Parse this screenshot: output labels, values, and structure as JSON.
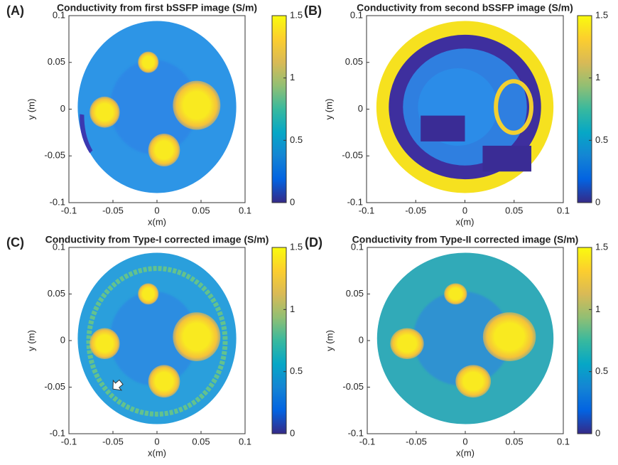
{
  "chart_data": [
    {
      "type": "image",
      "panel_label": "(A)",
      "title": "Conductivity from first bSSFP image (S/m)",
      "xlabel": "x(m)",
      "ylabel": "y (m)",
      "xlim": [
        -0.1,
        0.1
      ],
      "ylim": [
        -0.1,
        0.1
      ],
      "xticks": [
        -0.1,
        -0.05,
        0,
        0.05,
        0.1
      ],
      "yticks": [
        -0.1,
        -0.05,
        0,
        0.05,
        0.1
      ],
      "clim": [
        0,
        1.5
      ],
      "cticks": [
        0,
        0.5,
        1,
        1.5
      ],
      "colormap": "parula"
    },
    {
      "type": "image",
      "panel_label": "(B)",
      "title": "Conductivity from second bSSFP image (S/m)",
      "xlabel": "x(m)",
      "ylabel": "y (m)",
      "xlim": [
        -0.1,
        0.1
      ],
      "ylim": [
        -0.1,
        0.1
      ],
      "xticks": [
        -0.1,
        -0.05,
        0,
        0.05,
        0.1
      ],
      "yticks": [
        -0.1,
        -0.05,
        0,
        0.05,
        0.1
      ],
      "clim": [
        0,
        1.5
      ],
      "cticks": [
        0,
        0.5,
        1,
        1.5
      ],
      "colormap": "parula"
    },
    {
      "type": "image",
      "panel_label": "(C)",
      "title": "Conductivity from Type-I corrected image (S/m)",
      "xlabel": "x(m)",
      "ylabel": "y (m)",
      "xlim": [
        -0.1,
        0.1
      ],
      "ylim": [
        -0.1,
        0.1
      ],
      "xticks": [
        -0.1,
        -0.05,
        0,
        0.05,
        0.1
      ],
      "yticks": [
        -0.1,
        -0.05,
        0,
        0.05,
        0.1
      ],
      "clim": [
        0,
        1.5
      ],
      "cticks": [
        0,
        0.5,
        1,
        1.5
      ],
      "colormap": "parula"
    },
    {
      "type": "image",
      "panel_label": "(D)",
      "title": "Conductivity from Type-II corrected image (S/m)",
      "xlabel": "x(m)",
      "ylabel": "y (m)",
      "xlim": [
        -0.1,
        0.1
      ],
      "ylim": [
        -0.1,
        0.1
      ],
      "xticks": [
        -0.1,
        -0.05,
        0,
        0.05,
        0.1
      ],
      "yticks": [
        -0.1,
        -0.05,
        0,
        0.05,
        0.1
      ],
      "clim": [
        0,
        1.5
      ],
      "cticks": [
        0,
        0.5,
        1,
        1.5
      ],
      "colormap": "parula"
    }
  ]
}
